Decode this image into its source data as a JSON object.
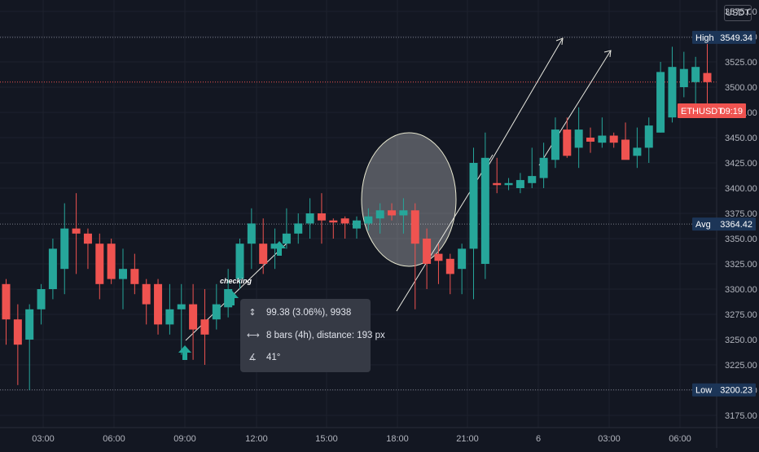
{
  "chart_data": {
    "type": "candlestick",
    "symbol_tag": "ETHUSDT",
    "countdown": "09:19",
    "currency": "USDT",
    "ylim": [
      3155,
      3580
    ],
    "y_ticks": [
      3175,
      3200,
      3225,
      3250,
      3275,
      3300,
      3325,
      3350,
      3375,
      3400,
      3425,
      3450,
      3475,
      3500,
      3525,
      3550,
      3575
    ],
    "y_tick_labels": [
      "3175.00",
      "3200.00",
      "3225.00",
      "3250.00",
      "3275.00",
      "3300.00",
      "3325.00",
      "3350.00",
      "3375.00",
      "3400.00",
      "3425.00",
      "3450.00",
      "3475.00",
      "3500.00",
      "3525.00",
      "3550.00",
      "3575.00"
    ],
    "x_ticks": [
      {
        "bar": 1.3,
        "label": "03:00"
      },
      {
        "bar": 4.3,
        "label": "06:00"
      },
      {
        "bar": 7.3,
        "label": "09:00"
      },
      {
        "bar": 10.3,
        "label": "12:00"
      },
      {
        "bar": 13.3,
        "label": "15:00"
      },
      {
        "bar": 16.3,
        "label": "18:00"
      },
      {
        "bar": 19.3,
        "label": "21:00"
      },
      {
        "bar": 22.3,
        "label": "6"
      },
      {
        "bar": 25.3,
        "label": "03:00"
      },
      {
        "bar": 28.3,
        "label": "06:00"
      }
    ],
    "bar_interval": "30m",
    "candles": [
      {
        "o": 3305,
        "h": 3310,
        "l": 3245,
        "c": 3270
      },
      {
        "o": 3270,
        "h": 3285,
        "l": 3205,
        "c": 3245
      },
      {
        "o": 3250,
        "h": 3285,
        "l": 3200,
        "c": 3280
      },
      {
        "o": 3280,
        "h": 3305,
        "l": 3265,
        "c": 3300
      },
      {
        "o": 3300,
        "h": 3350,
        "l": 3290,
        "c": 3340
      },
      {
        "o": 3320,
        "h": 3385,
        "l": 3295,
        "c": 3360
      },
      {
        "o": 3360,
        "h": 3395,
        "l": 3315,
        "c": 3355
      },
      {
        "o": 3355,
        "h": 3360,
        "l": 3320,
        "c": 3345
      },
      {
        "o": 3345,
        "h": 3355,
        "l": 3290,
        "c": 3305
      },
      {
        "o": 3345,
        "h": 3350,
        "l": 3305,
        "c": 3310
      },
      {
        "o": 3310,
        "h": 3340,
        "l": 3280,
        "c": 3320
      },
      {
        "o": 3320,
        "h": 3335,
        "l": 3295,
        "c": 3305
      },
      {
        "o": 3305,
        "h": 3310,
        "l": 3265,
        "c": 3285
      },
      {
        "o": 3305,
        "h": 3310,
        "l": 3255,
        "c": 3265
      },
      {
        "o": 3265,
        "h": 3305,
        "l": 3255,
        "c": 3280
      },
      {
        "o": 3280,
        "h": 3305,
        "l": 3235,
        "c": 3285
      },
      {
        "o": 3285,
        "h": 3305,
        "l": 3230,
        "c": 3260
      },
      {
        "o": 3270,
        "h": 3300,
        "l": 3225,
        "c": 3255
      },
      {
        "o": 3270,
        "h": 3305,
        "l": 3260,
        "c": 3285
      },
      {
        "o": 3282,
        "h": 3320,
        "l": 3272,
        "c": 3300
      },
      {
        "o": 3310,
        "h": 3350,
        "l": 3300,
        "c": 3345
      },
      {
        "o": 3345,
        "h": 3380,
        "l": 3320,
        "c": 3365
      },
      {
        "o": 3345,
        "h": 3370,
        "l": 3315,
        "c": 3325
      },
      {
        "o": 3340,
        "h": 3360,
        "l": 3320,
        "c": 3345
      },
      {
        "o": 3345,
        "h": 3380,
        "l": 3340,
        "c": 3355
      },
      {
        "o": 3355,
        "h": 3375,
        "l": 3345,
        "c": 3365
      },
      {
        "o": 3365,
        "h": 3390,
        "l": 3350,
        "c": 3375
      },
      {
        "o": 3375,
        "h": 3395,
        "l": 3345,
        "c": 3368
      },
      {
        "o": 3368,
        "h": 3370,
        "l": 3350,
        "c": 3366
      },
      {
        "o": 3370,
        "h": 3372,
        "l": 3350,
        "c": 3365
      },
      {
        "o": 3360,
        "h": 3372,
        "l": 3350,
        "c": 3368
      },
      {
        "o": 3365,
        "h": 3380,
        "l": 3358,
        "c": 3372
      },
      {
        "o": 3370,
        "h": 3385,
        "l": 3355,
        "c": 3378
      },
      {
        "o": 3378,
        "h": 3385,
        "l": 3368,
        "c": 3373
      },
      {
        "o": 3373,
        "h": 3390,
        "l": 3355,
        "c": 3378
      },
      {
        "o": 3378,
        "h": 3385,
        "l": 3280,
        "c": 3345
      },
      {
        "o": 3350,
        "h": 3360,
        "l": 3300,
        "c": 3325
      },
      {
        "o": 3335,
        "h": 3345,
        "l": 3305,
        "c": 3328
      },
      {
        "o": 3330,
        "h": 3335,
        "l": 3295,
        "c": 3315
      },
      {
        "o": 3320,
        "h": 3345,
        "l": 3295,
        "c": 3340
      },
      {
        "o": 3340,
        "h": 3440,
        "l": 3290,
        "c": 3425
      },
      {
        "o": 3325,
        "h": 3455,
        "l": 3310,
        "c": 3430
      },
      {
        "o": 3405,
        "h": 3430,
        "l": 3395,
        "c": 3403
      },
      {
        "o": 3403,
        "h": 3410,
        "l": 3398,
        "c": 3405
      },
      {
        "o": 3400,
        "h": 3415,
        "l": 3395,
        "c": 3408
      },
      {
        "o": 3405,
        "h": 3440,
        "l": 3400,
        "c": 3412
      },
      {
        "o": 3410,
        "h": 3445,
        "l": 3400,
        "c": 3430
      },
      {
        "o": 3428,
        "h": 3470,
        "l": 3420,
        "c": 3458
      },
      {
        "o": 3458,
        "h": 3470,
        "l": 3430,
        "c": 3432
      },
      {
        "o": 3440,
        "h": 3480,
        "l": 3420,
        "c": 3458
      },
      {
        "o": 3450,
        "h": 3460,
        "l": 3435,
        "c": 3446
      },
      {
        "o": 3445,
        "h": 3470,
        "l": 3440,
        "c": 3452
      },
      {
        "o": 3452,
        "h": 3455,
        "l": 3440,
        "c": 3445
      },
      {
        "o": 3448,
        "h": 3465,
        "l": 3430,
        "c": 3428
      },
      {
        "o": 3432,
        "h": 3460,
        "l": 3420,
        "c": 3440
      },
      {
        "o": 3440,
        "h": 3470,
        "l": 3425,
        "c": 3462
      },
      {
        "o": 3455,
        "h": 3525,
        "l": 3455,
        "c": 3515
      },
      {
        "o": 3470,
        "h": 3540,
        "l": 3465,
        "c": 3520
      },
      {
        "o": 3500,
        "h": 3535,
        "l": 3490,
        "c": 3518
      },
      {
        "o": 3505,
        "h": 3530,
        "l": 3480,
        "c": 3520
      },
      {
        "o": 3514,
        "h": 3543,
        "l": 3470,
        "c": 3505
      }
    ],
    "levels": [
      {
        "label": "High",
        "value": 3549.34,
        "value_label": "3549.34"
      },
      {
        "label": "Avg",
        "value": 3364.42,
        "value_label": "3364.42"
      },
      {
        "label": "Low",
        "value": 3200.23,
        "value_label": "3200.23"
      }
    ],
    "last_price_line": 3505,
    "annotations": {
      "text": "checking",
      "tooltip": {
        "price_change": "99.38 (3.06%), 9938",
        "range": "8 bars (4h), distance: 193 px",
        "angle": "41°"
      }
    },
    "colors": {
      "background": "#131722",
      "up": "#26a69a",
      "down": "#ef5350",
      "grid": "#1e222d",
      "axis_text": "#b2b5be",
      "level_tag": "#1e3a5f",
      "symbol_tag": "#ef5350"
    }
  }
}
